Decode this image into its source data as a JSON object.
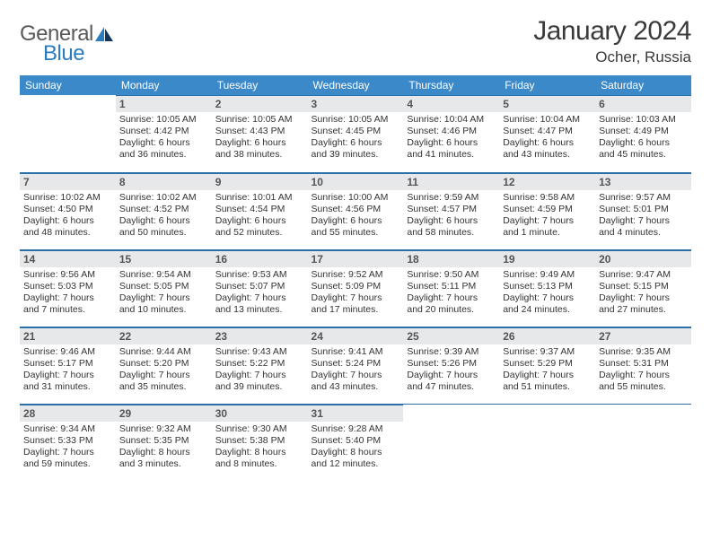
{
  "brand": {
    "word1": "General",
    "word2": "Blue",
    "color1": "#5a5a5a",
    "color2": "#2b7bbf"
  },
  "title": "January 2024",
  "location": "Ocher, Russia",
  "header_bg": "#3b89c9",
  "header_fg": "#ffffff",
  "daynum_bg": "#e7e8ea",
  "rule_color": "#2a6fa8",
  "days_of_week": [
    "Sunday",
    "Monday",
    "Tuesday",
    "Wednesday",
    "Thursday",
    "Friday",
    "Saturday"
  ],
  "weeks": [
    [
      null,
      {
        "n": "1",
        "l1": "Sunrise: 10:05 AM",
        "l2": "Sunset: 4:42 PM",
        "l3": "Daylight: 6 hours",
        "l4": "and 36 minutes."
      },
      {
        "n": "2",
        "l1": "Sunrise: 10:05 AM",
        "l2": "Sunset: 4:43 PM",
        "l3": "Daylight: 6 hours",
        "l4": "and 38 minutes."
      },
      {
        "n": "3",
        "l1": "Sunrise: 10:05 AM",
        "l2": "Sunset: 4:45 PM",
        "l3": "Daylight: 6 hours",
        "l4": "and 39 minutes."
      },
      {
        "n": "4",
        "l1": "Sunrise: 10:04 AM",
        "l2": "Sunset: 4:46 PM",
        "l3": "Daylight: 6 hours",
        "l4": "and 41 minutes."
      },
      {
        "n": "5",
        "l1": "Sunrise: 10:04 AM",
        "l2": "Sunset: 4:47 PM",
        "l3": "Daylight: 6 hours",
        "l4": "and 43 minutes."
      },
      {
        "n": "6",
        "l1": "Sunrise: 10:03 AM",
        "l2": "Sunset: 4:49 PM",
        "l3": "Daylight: 6 hours",
        "l4": "and 45 minutes."
      }
    ],
    [
      {
        "n": "7",
        "l1": "Sunrise: 10:02 AM",
        "l2": "Sunset: 4:50 PM",
        "l3": "Daylight: 6 hours",
        "l4": "and 48 minutes."
      },
      {
        "n": "8",
        "l1": "Sunrise: 10:02 AM",
        "l2": "Sunset: 4:52 PM",
        "l3": "Daylight: 6 hours",
        "l4": "and 50 minutes."
      },
      {
        "n": "9",
        "l1": "Sunrise: 10:01 AM",
        "l2": "Sunset: 4:54 PM",
        "l3": "Daylight: 6 hours",
        "l4": "and 52 minutes."
      },
      {
        "n": "10",
        "l1": "Sunrise: 10:00 AM",
        "l2": "Sunset: 4:56 PM",
        "l3": "Daylight: 6 hours",
        "l4": "and 55 minutes."
      },
      {
        "n": "11",
        "l1": "Sunrise: 9:59 AM",
        "l2": "Sunset: 4:57 PM",
        "l3": "Daylight: 6 hours",
        "l4": "and 58 minutes."
      },
      {
        "n": "12",
        "l1": "Sunrise: 9:58 AM",
        "l2": "Sunset: 4:59 PM",
        "l3": "Daylight: 7 hours",
        "l4": "and 1 minute."
      },
      {
        "n": "13",
        "l1": "Sunrise: 9:57 AM",
        "l2": "Sunset: 5:01 PM",
        "l3": "Daylight: 7 hours",
        "l4": "and 4 minutes."
      }
    ],
    [
      {
        "n": "14",
        "l1": "Sunrise: 9:56 AM",
        "l2": "Sunset: 5:03 PM",
        "l3": "Daylight: 7 hours",
        "l4": "and 7 minutes."
      },
      {
        "n": "15",
        "l1": "Sunrise: 9:54 AM",
        "l2": "Sunset: 5:05 PM",
        "l3": "Daylight: 7 hours",
        "l4": "and 10 minutes."
      },
      {
        "n": "16",
        "l1": "Sunrise: 9:53 AM",
        "l2": "Sunset: 5:07 PM",
        "l3": "Daylight: 7 hours",
        "l4": "and 13 minutes."
      },
      {
        "n": "17",
        "l1": "Sunrise: 9:52 AM",
        "l2": "Sunset: 5:09 PM",
        "l3": "Daylight: 7 hours",
        "l4": "and 17 minutes."
      },
      {
        "n": "18",
        "l1": "Sunrise: 9:50 AM",
        "l2": "Sunset: 5:11 PM",
        "l3": "Daylight: 7 hours",
        "l4": "and 20 minutes."
      },
      {
        "n": "19",
        "l1": "Sunrise: 9:49 AM",
        "l2": "Sunset: 5:13 PM",
        "l3": "Daylight: 7 hours",
        "l4": "and 24 minutes."
      },
      {
        "n": "20",
        "l1": "Sunrise: 9:47 AM",
        "l2": "Sunset: 5:15 PM",
        "l3": "Daylight: 7 hours",
        "l4": "and 27 minutes."
      }
    ],
    [
      {
        "n": "21",
        "l1": "Sunrise: 9:46 AM",
        "l2": "Sunset: 5:17 PM",
        "l3": "Daylight: 7 hours",
        "l4": "and 31 minutes."
      },
      {
        "n": "22",
        "l1": "Sunrise: 9:44 AM",
        "l2": "Sunset: 5:20 PM",
        "l3": "Daylight: 7 hours",
        "l4": "and 35 minutes."
      },
      {
        "n": "23",
        "l1": "Sunrise: 9:43 AM",
        "l2": "Sunset: 5:22 PM",
        "l3": "Daylight: 7 hours",
        "l4": "and 39 minutes."
      },
      {
        "n": "24",
        "l1": "Sunrise: 9:41 AM",
        "l2": "Sunset: 5:24 PM",
        "l3": "Daylight: 7 hours",
        "l4": "and 43 minutes."
      },
      {
        "n": "25",
        "l1": "Sunrise: 9:39 AM",
        "l2": "Sunset: 5:26 PM",
        "l3": "Daylight: 7 hours",
        "l4": "and 47 minutes."
      },
      {
        "n": "26",
        "l1": "Sunrise: 9:37 AM",
        "l2": "Sunset: 5:29 PM",
        "l3": "Daylight: 7 hours",
        "l4": "and 51 minutes."
      },
      {
        "n": "27",
        "l1": "Sunrise: 9:35 AM",
        "l2": "Sunset: 5:31 PM",
        "l3": "Daylight: 7 hours",
        "l4": "and 55 minutes."
      }
    ],
    [
      {
        "n": "28",
        "l1": "Sunrise: 9:34 AM",
        "l2": "Sunset: 5:33 PM",
        "l3": "Daylight: 7 hours",
        "l4": "and 59 minutes."
      },
      {
        "n": "29",
        "l1": "Sunrise: 9:32 AM",
        "l2": "Sunset: 5:35 PM",
        "l3": "Daylight: 8 hours",
        "l4": "and 3 minutes."
      },
      {
        "n": "30",
        "l1": "Sunrise: 9:30 AM",
        "l2": "Sunset: 5:38 PM",
        "l3": "Daylight: 8 hours",
        "l4": "and 8 minutes."
      },
      {
        "n": "31",
        "l1": "Sunrise: 9:28 AM",
        "l2": "Sunset: 5:40 PM",
        "l3": "Daylight: 8 hours",
        "l4": "and 12 minutes."
      },
      null,
      null,
      null
    ]
  ]
}
